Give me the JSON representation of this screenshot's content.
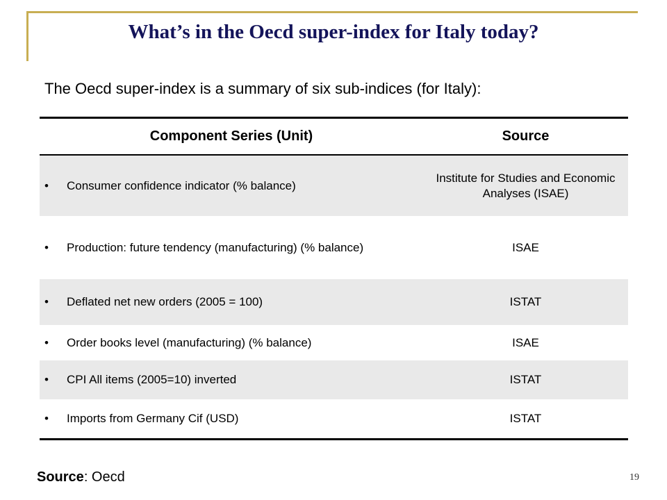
{
  "slide": {
    "title": "What’s in the Oecd super-index for Italy today?",
    "intro": "The Oecd super-index is a summary of six sub-indices (for Italy):",
    "footer_label": "Source",
    "footer_value": ": Oecd",
    "page_number": "19",
    "colors": {
      "title": "#14145a",
      "frame": "#c8ae52",
      "row_shade": "#e9e9e9"
    }
  },
  "table": {
    "headers": {
      "component": "Component Series (Unit)",
      "source": "Source"
    },
    "rows": [
      {
        "component": "Consumer confidence indicator (% balance)",
        "source": "Institute for Studies and Economic Analyses  (ISAE)"
      },
      {
        "component": "Production: future tendency (manufacturing) (% balance)",
        "source": "ISAE"
      },
      {
        "component": "Deflated net new orders (2005 = 100)",
        "source": "ISTAT"
      },
      {
        "component": "Order books level (manufacturing) (% balance)",
        "source": "ISAE"
      },
      {
        "component": "CPI All items (2005=10) inverted",
        "source": "ISTAT"
      },
      {
        "component": "Imports from Germany Cif (USD)",
        "source": "ISTAT"
      }
    ]
  }
}
